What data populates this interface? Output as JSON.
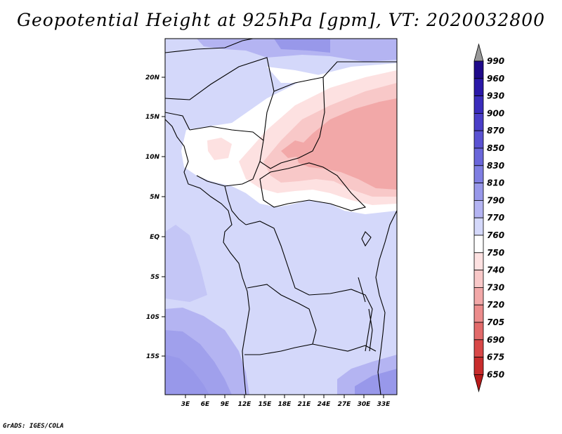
{
  "title": "Geopotential Height at 925hPa [gpm], VT: 2020032800",
  "credit": "GrADS: IGES/COLA",
  "lat_labels": [
    "20N",
    "15N",
    "10N",
    "5N",
    "EQ",
    "5S",
    "10S",
    "15S"
  ],
  "lon_labels": [
    "3E",
    "6E",
    "9E",
    "12E",
    "15E",
    "18E",
    "21E",
    "24E",
    "27E",
    "30E",
    "33E"
  ],
  "colorbar": {
    "levels": [
      "990",
      "960",
      "930",
      "900",
      "870",
      "850",
      "830",
      "810",
      "790",
      "770",
      "760",
      "750",
      "740",
      "730",
      "720",
      "705",
      "690",
      "675",
      "650"
    ],
    "colors": [
      "#1f0a8a",
      "#2a18a8",
      "#3a2cbc",
      "#4a3ec8",
      "#5a52d2",
      "#6a66da",
      "#7f7ee2",
      "#9898ea",
      "#b4b4f2",
      "#d4d8fa",
      "#ffffff",
      "#fde1e1",
      "#f8c8c8",
      "#f2a8a8",
      "#ec8c8c",
      "#e26a6a",
      "#d84848",
      "#c82c2c",
      "#b81a1a"
    ]
  },
  "map_colors": {
    "ocean_bg": "#d4d8fa",
    "mid": "#c4c6f6",
    "deep": "#b0b2f0",
    "deeper": "#a0a0ec",
    "white": "#ffffff",
    "pink1": "#fde1e1",
    "pink2": "#f8c8c8",
    "pink3": "#f2a8a8"
  }
}
